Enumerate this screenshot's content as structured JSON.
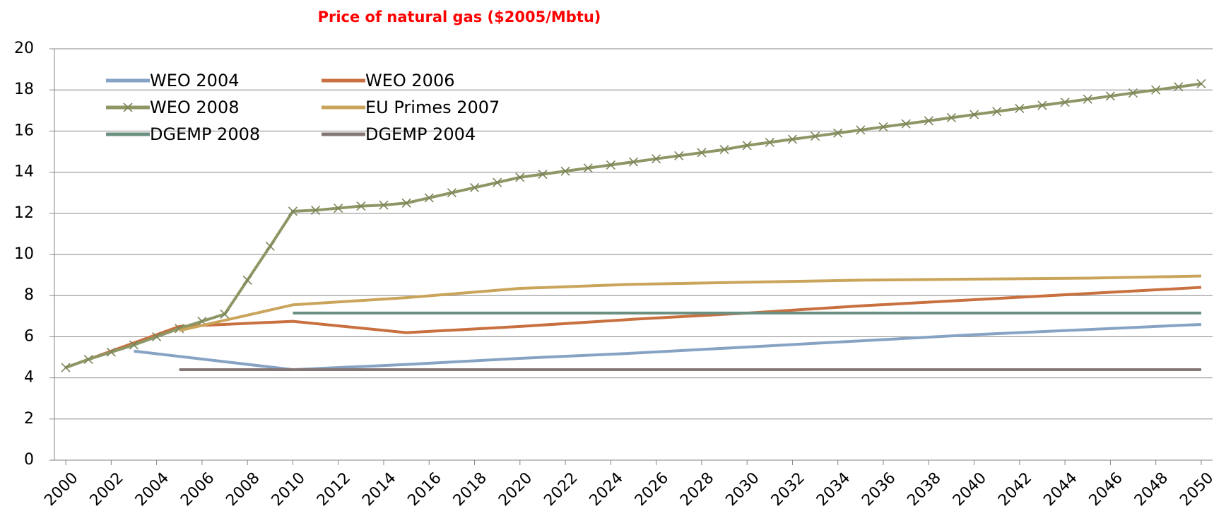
{
  "chart_data": {
    "type": "line",
    "title": "Price of natural gas ($2005/Mbtu)",
    "xlim": [
      1999.5,
      2050.5
    ],
    "xticks": [
      2000,
      2002,
      2004,
      2006,
      2008,
      2010,
      2012,
      2014,
      2016,
      2018,
      2020,
      2022,
      2024,
      2026,
      2028,
      2030,
      2032,
      2034,
      2036,
      2038,
      2040,
      2042,
      2044,
      2046,
      2048,
      2050
    ],
    "ylim": [
      0,
      20
    ],
    "yticks": [
      0,
      2,
      4,
      6,
      8,
      10,
      12,
      14,
      16,
      18,
      20
    ],
    "grid": true,
    "series": [
      {
        "name": "WEO 2004",
        "color": "#86a3c4",
        "x": [
          2003,
          2010,
          2015,
          2020,
          2025,
          2030,
          2035,
          2040,
          2045,
          2050
        ],
        "values": [
          5.3,
          4.4,
          4.65,
          4.95,
          5.2,
          5.5,
          5.8,
          6.1,
          6.35,
          6.6
        ]
      },
      {
        "name": "WEO 2006",
        "color": "#c8703f",
        "x": [
          2000,
          2005,
          2010,
          2015,
          2020,
          2025,
          2030,
          2035,
          2040,
          2045,
          2050
        ],
        "values": [
          4.5,
          6.5,
          6.75,
          6.2,
          6.5,
          6.85,
          7.15,
          7.5,
          7.8,
          8.1,
          8.4
        ]
      },
      {
        "name": "WEO 2008",
        "color": "#8c9765",
        "marker": "x",
        "x": [
          2000,
          2001,
          2002,
          2003,
          2004,
          2005,
          2006,
          2007,
          2008,
          2009,
          2010,
          2011,
          2012,
          2013,
          2014,
          2015,
          2016,
          2017,
          2018,
          2019,
          2020,
          2021,
          2022,
          2023,
          2024,
          2025,
          2026,
          2027,
          2028,
          2029,
          2030,
          2031,
          2032,
          2033,
          2034,
          2035,
          2036,
          2037,
          2038,
          2039,
          2040,
          2041,
          2042,
          2043,
          2044,
          2045,
          2046,
          2047,
          2048,
          2049,
          2050
        ],
        "values": [
          4.5,
          4.9,
          5.25,
          5.6,
          6.0,
          6.4,
          6.75,
          7.1,
          8.75,
          10.4,
          12.1,
          12.15,
          12.25,
          12.35,
          12.4,
          12.5,
          12.75,
          13.0,
          13.25,
          13.5,
          13.75,
          13.9,
          14.05,
          14.2,
          14.35,
          14.5,
          14.65,
          14.8,
          14.95,
          15.1,
          15.3,
          15.45,
          15.6,
          15.75,
          15.9,
          16.05,
          16.2,
          16.35,
          16.5,
          16.65,
          16.8,
          16.95,
          17.1,
          17.25,
          17.4,
          17.55,
          17.7,
          17.85,
          18.0,
          18.15,
          18.3
        ]
      },
      {
        "name": "EU Primes 2007",
        "color": "#c9a45a",
        "x": [
          2005,
          2010,
          2015,
          2020,
          2025,
          2030,
          2035,
          2040,
          2045,
          2050
        ],
        "values": [
          6.3,
          7.55,
          7.9,
          8.35,
          8.55,
          8.65,
          8.75,
          8.8,
          8.85,
          8.95
        ]
      },
      {
        "name": "DGEMP 2008",
        "color": "#6b9080",
        "x": [
          2010,
          2050
        ],
        "values": [
          7.15,
          7.15
        ]
      },
      {
        "name": "DGEMP 2004",
        "color": "#857676",
        "x": [
          2005,
          2050
        ],
        "values": [
          4.4,
          4.4
        ]
      }
    ]
  }
}
